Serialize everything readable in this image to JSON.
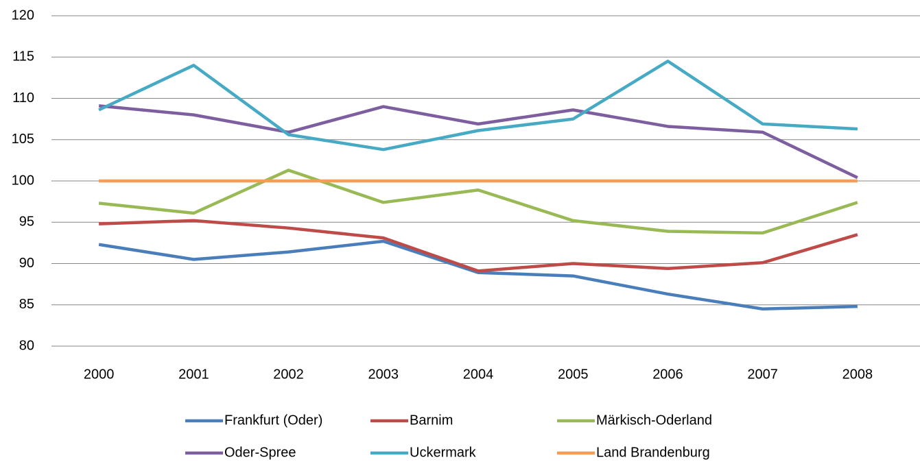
{
  "chart_data": {
    "type": "line",
    "categories": [
      "2000",
      "2001",
      "2002",
      "2003",
      "2004",
      "2005",
      "2006",
      "2007",
      "2008"
    ],
    "series": [
      {
        "name": "Frankfurt (Oder)",
        "color": "#4a7ebb",
        "values": [
          92.3,
          90.5,
          91.4,
          92.7,
          88.9,
          88.5,
          86.3,
          84.5,
          84.8
        ]
      },
      {
        "name": "Barnim",
        "color": "#be4b48",
        "values": [
          94.8,
          95.2,
          94.3,
          93.1,
          89.1,
          90.0,
          89.4,
          90.1,
          93.5
        ]
      },
      {
        "name": "Märkisch-Oderland",
        "color": "#98b954",
        "values": [
          97.3,
          96.1,
          101.3,
          97.4,
          98.9,
          95.2,
          93.9,
          93.7,
          97.4
        ]
      },
      {
        "name": "Oder-Spree",
        "color": "#7d5fa0",
        "values": [
          109.1,
          108.0,
          105.9,
          109.0,
          106.9,
          108.6,
          106.6,
          105.9,
          100.4
        ]
      },
      {
        "name": "Uckermark",
        "color": "#46aac5",
        "values": [
          108.6,
          114.0,
          105.6,
          103.8,
          106.1,
          107.5,
          114.5,
          106.9,
          106.3
        ]
      },
      {
        "name": "Land Brandenburg",
        "color": "#f59d56",
        "values": [
          100,
          100,
          100,
          100,
          100,
          100,
          100,
          100,
          100
        ]
      }
    ],
    "ylim": [
      80,
      120
    ],
    "yticks": [
      80,
      85,
      90,
      95,
      100,
      105,
      110,
      115,
      120
    ],
    "grid": true,
    "legend": "bottom"
  }
}
